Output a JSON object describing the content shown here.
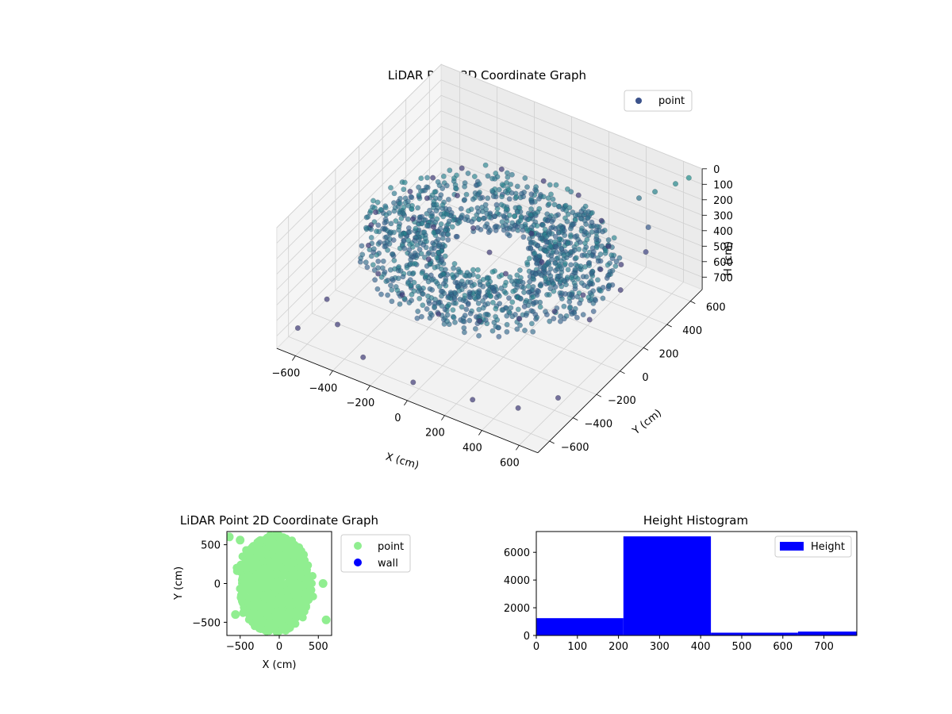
{
  "chart_data": [
    {
      "type": "scatter",
      "title": "LiDAR Point 3D Coordinate Graph",
      "xlabel": "X (cm)",
      "ylabel": "Y (cm)",
      "zlabel": "H (cm)",
      "xlim": [
        -700,
        700
      ],
      "ylim": [
        -700,
        700
      ],
      "zlim": [
        0,
        780
      ],
      "z_inverted": true,
      "x_ticks": [
        -600,
        -400,
        -200,
        0,
        200,
        400,
        600
      ],
      "y_ticks": [
        -600,
        -400,
        -200,
        0,
        200,
        400,
        600
      ],
      "z_ticks": [
        0,
        100,
        200,
        300,
        400,
        500,
        600,
        700
      ],
      "grid": true,
      "legend": [
        "point"
      ],
      "legend_position": "top-right",
      "colormap": "viridis",
      "colors": {
        "point_marker": "#3b528b"
      },
      "series": [
        {
          "name": "point",
          "description_of_shape": "dense ring of points around origin with radius about 300-550 cm and height about 280-420 cm, plus sparse outliers",
          "points": [
            [
              -560,
              -80,
              300
            ],
            [
              -520,
              150,
              320
            ],
            [
              -480,
              280,
              310
            ],
            [
              -400,
              400,
              300
            ],
            [
              -250,
              500,
              310
            ],
            [
              -50,
              540,
              320
            ],
            [
              150,
              520,
              300
            ],
            [
              330,
              430,
              310
            ],
            [
              450,
              300,
              320
            ],
            [
              520,
              120,
              300
            ],
            [
              540,
              -60,
              320
            ],
            [
              500,
              -240,
              310
            ],
            [
              400,
              -380,
              300
            ],
            [
              250,
              -480,
              310
            ],
            [
              60,
              -530,
              320
            ],
            [
              -140,
              -520,
              300
            ],
            [
              -320,
              -440,
              310
            ],
            [
              -460,
              -300,
              300
            ],
            [
              -540,
              -150,
              320
            ],
            [
              -300,
              0,
              330
            ],
            [
              -150,
              100,
              340
            ],
            [
              0,
              0,
              350
            ],
            [
              150,
              -100,
              340
            ],
            [
              100,
              200,
              330
            ],
            [
              -200,
              -200,
              340
            ],
            [
              250,
              50,
              330
            ],
            [
              500,
              480,
              120
            ],
            [
              560,
              520,
              80
            ],
            [
              620,
              600,
              60
            ],
            [
              600,
              400,
              200
            ],
            [
              650,
              300,
              260
            ],
            [
              580,
              200,
              300
            ],
            [
              640,
              100,
              360
            ],
            [
              600,
              -100,
              420
            ],
            [
              -650,
              -600,
              700
            ],
            [
              -620,
              -400,
              650
            ],
            [
              -500,
              -500,
              680
            ],
            [
              -300,
              -600,
              720
            ],
            [
              0,
              -650,
              700
            ],
            [
              300,
              -620,
              690
            ],
            [
              500,
              -550,
              700
            ],
            [
              620,
              -400,
              690
            ],
            [
              -600,
              300,
              650
            ],
            [
              -650,
              500,
              690
            ],
            [
              -550,
              600,
              700
            ],
            [
              660,
              650,
              40
            ]
          ]
        }
      ]
    },
    {
      "type": "scatter",
      "title": "LiDAR Point 2D Coordinate Graph",
      "xlabel": "X (cm)",
      "ylabel": "Y (cm)",
      "xlim": [
        -670,
        670
      ],
      "ylim": [
        -670,
        670
      ],
      "x_ticks": [
        -500,
        0,
        500
      ],
      "y_ticks": [
        -500,
        0,
        500
      ],
      "legend": [
        "point",
        "wall"
      ],
      "legend_position": "outside-right",
      "colors": {
        "point": "#90ee90",
        "wall": "#0000ff"
      },
      "series": [
        {
          "name": "point",
          "shape": "dense filled blob",
          "extent_x": [
            -600,
            600
          ],
          "extent_y": [
            -650,
            650
          ]
        },
        {
          "name": "wall",
          "points": []
        }
      ]
    },
    {
      "type": "bar",
      "title": "Height Histogram",
      "xlim": [
        0,
        780
      ],
      "ylim": [
        0,
        7500
      ],
      "x_ticks": [
        0,
        100,
        200,
        300,
        400,
        500,
        600,
        700
      ],
      "y_ticks": [
        0,
        2000,
        4000,
        6000
      ],
      "legend": [
        "Height"
      ],
      "legend_position": "top-right",
      "colors": {
        "bar": "#0000ff"
      },
      "bins": [
        {
          "start": 0,
          "end": 212,
          "count": 1250
        },
        {
          "start": 212,
          "end": 425,
          "count": 7150
        },
        {
          "start": 425,
          "end": 637,
          "count": 200
        },
        {
          "start": 637,
          "end": 850,
          "count": 280
        }
      ]
    }
  ]
}
